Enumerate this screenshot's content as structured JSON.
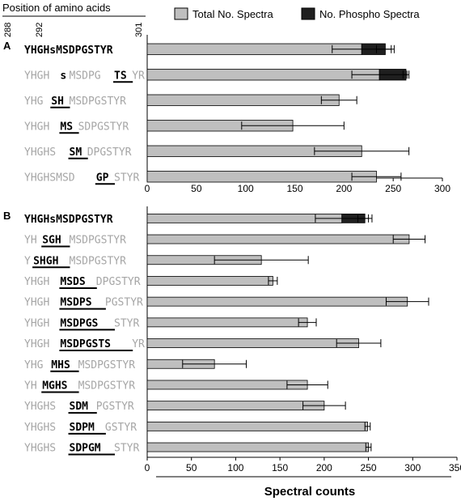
{
  "header": {
    "position_label": "Position of amino acids",
    "pos_ticks": [
      "288",
      "292",
      "301"
    ]
  },
  "legend": {
    "total": "Total No. Spectra",
    "phospho": "No. Phospho Spectra"
  },
  "colors": {
    "total": "#bfbfbf",
    "phospho": "#1f1f1f",
    "grey_text": "#a6a6a6",
    "dark_text": "#000000"
  },
  "xaxis_label": "Spectral counts",
  "chart_data": [
    {
      "type": "bar",
      "orientation": "horizontal",
      "stacked": true,
      "panel": "A",
      "xlim": [
        0,
        300
      ],
      "xticks": [
        0,
        50,
        100,
        150,
        200,
        250,
        300
      ],
      "categories": [
        [
          {
            "t": "YHGHsMSDPGSTYR",
            "s": "bold"
          }
        ],
        [
          {
            "t": "YHGH",
            "s": "grey"
          },
          {
            "t": "s",
            "s": "bold"
          },
          {
            "t": "MSDPG",
            "s": "grey"
          },
          {
            "t": "TS",
            "s": "mut"
          },
          {
            "t": "YR",
            "s": "grey"
          }
        ],
        [
          {
            "t": "YHG",
            "s": "grey"
          },
          {
            "t": "SH",
            "s": "mut"
          },
          {
            "t": "MSDPGSTYR",
            "s": "grey"
          }
        ],
        [
          {
            "t": "YHGH",
            "s": "grey"
          },
          {
            "t": "MS",
            "s": "mut"
          },
          {
            "t": "SDPGSTYR",
            "s": "grey"
          }
        ],
        [
          {
            "t": "YHGHS",
            "s": "grey"
          },
          {
            "t": "SM",
            "s": "mut"
          },
          {
            "t": "DPGSTYR",
            "s": "grey"
          }
        ],
        [
          {
            "t": "YHGHSMSD",
            "s": "grey"
          },
          {
            "t": "GP",
            "s": "mut"
          },
          {
            "t": "STYR",
            "s": "grey"
          }
        ]
      ],
      "series": [
        {
          "name": "Total No. Spectra",
          "values": [
            218,
            236,
            195,
            148,
            218,
            233
          ],
          "err": [
            30,
            28,
            18,
            52,
            48,
            25
          ]
        },
        {
          "name": "No. Phospho Spectra",
          "values": [
            24,
            27,
            0,
            0,
            0,
            0
          ],
          "err": [
            9,
            3,
            0,
            0,
            0,
            0
          ]
        }
      ]
    },
    {
      "type": "bar",
      "orientation": "horizontal",
      "stacked": true,
      "panel": "B",
      "xlim": [
        0,
        350
      ],
      "xticks": [
        0,
        50,
        100,
        150,
        200,
        250,
        300,
        350
      ],
      "categories": [
        [
          {
            "t": "YHGHsMSDPGSTYR",
            "s": "bold"
          }
        ],
        [
          {
            "t": "YH",
            "s": "grey"
          },
          {
            "t": "SGH",
            "s": "mut"
          },
          {
            "t": "MSDPGSTYR",
            "s": "grey"
          }
        ],
        [
          {
            "t": "Y",
            "s": "grey"
          },
          {
            "t": "SHGH",
            "s": "mut"
          },
          {
            "t": "MSDPGSTYR",
            "s": "grey"
          }
        ],
        [
          {
            "t": "YHGH",
            "s": "grey"
          },
          {
            "t": "MSDS",
            "s": "mut"
          },
          {
            "t": "DPGSTYR",
            "s": "grey"
          }
        ],
        [
          {
            "t": "YHGH",
            "s": "grey"
          },
          {
            "t": "MSDPS",
            "s": "mut"
          },
          {
            "t": "PGSTYR",
            "s": "grey"
          }
        ],
        [
          {
            "t": "YHGH",
            "s": "grey"
          },
          {
            "t": "MSDPGS",
            "s": "mut"
          },
          {
            "t": "STYR",
            "s": "grey"
          }
        ],
        [
          {
            "t": "YHGH",
            "s": "grey"
          },
          {
            "t": "MSDPGSTS",
            "s": "mut"
          },
          {
            "t": "YR",
            "s": "grey"
          }
        ],
        [
          {
            "t": "YHG",
            "s": "grey"
          },
          {
            "t": "MHS",
            "s": "mut"
          },
          {
            "t": "MSDPGSTYR",
            "s": "grey"
          }
        ],
        [
          {
            "t": "YH",
            "s": "grey"
          },
          {
            "t": "MGHS",
            "s": "mut"
          },
          {
            "t": "MSDPGSTYR",
            "s": "grey"
          }
        ],
        [
          {
            "t": "YHGHS",
            "s": "grey"
          },
          {
            "t": "SDM",
            "s": "mut"
          },
          {
            "t": "PGSTYR",
            "s": "grey"
          }
        ],
        [
          {
            "t": "YHGHS",
            "s": "grey"
          },
          {
            "t": "SDPM",
            "s": "mut"
          },
          {
            "t": "GSTYR",
            "s": "grey"
          }
        ],
        [
          {
            "t": "YHGHS",
            "s": "grey"
          },
          {
            "t": "SDPGM",
            "s": "mut"
          },
          {
            "t": "STYR",
            "s": "grey"
          }
        ]
      ],
      "series": [
        {
          "name": "Total No. Spectra",
          "values": [
            220,
            296,
            129,
            142,
            294,
            181,
            239,
            76,
            181,
            200,
            249,
            250
          ],
          "err": [
            30,
            18,
            53,
            5,
            24,
            10,
            25,
            36,
            23,
            24,
            3,
            3
          ]
        },
        {
          "name": "No. Phospho Spectra",
          "values": [
            26,
            0,
            0,
            0,
            0,
            0,
            0,
            0,
            0,
            0,
            0,
            0
          ],
          "err": [
            8,
            0,
            0,
            0,
            0,
            0,
            0,
            0,
            0,
            0,
            0,
            0
          ]
        }
      ]
    }
  ]
}
